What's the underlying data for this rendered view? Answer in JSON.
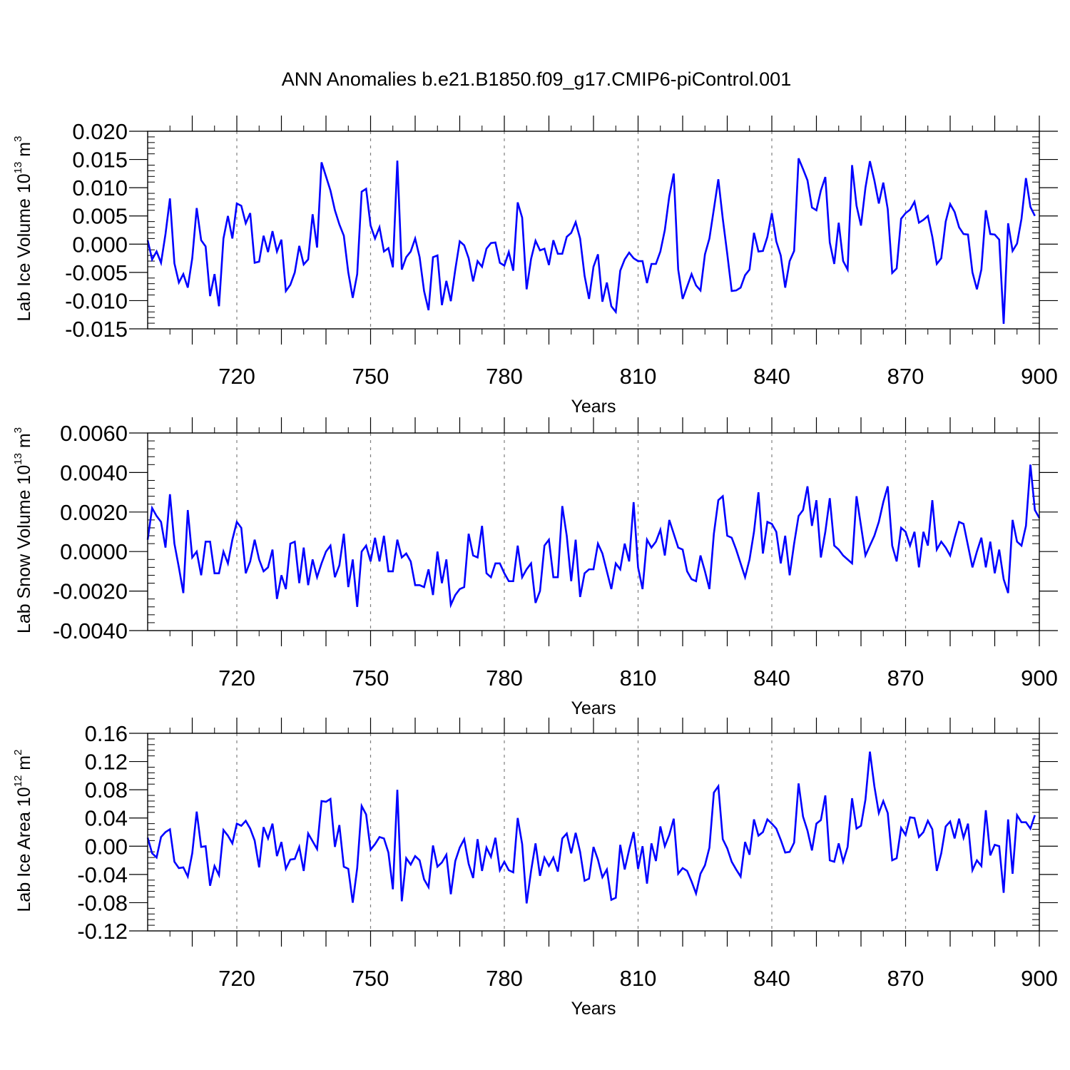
{
  "title": "ANN Anomalies b.e21.B1850.f09_g17.CMIP6-piControl.001",
  "chart_data": [
    {
      "type": "line",
      "ylabel": "Lab Ice Volume 10",
      "ylabel_exp": "13",
      "ylabel_unit": " m",
      "ylabel_unit_exp": "3",
      "xlabel": "Years",
      "xlim": [
        700,
        900
      ],
      "ylim": [
        -0.015,
        0.02
      ],
      "yticks": [
        -0.015,
        -0.01,
        -0.005,
        0.0,
        0.005,
        0.01,
        0.015,
        0.02
      ],
      "ytick_labels": [
        "-0.015",
        "-0.010",
        "-0.005",
        "0.000",
        "0.005",
        "0.010",
        "0.015",
        "0.020"
      ],
      "xticks": [
        720,
        750,
        780,
        810,
        840,
        870,
        900
      ],
      "xtick_labels": [
        "720",
        "750",
        "780",
        "810",
        "840",
        "870",
        "900"
      ],
      "grid": "dashed vertical at x ticks",
      "series": [
        {
          "color": "#0000ff",
          "x_start": 700,
          "values": [
            0.0007,
            -0.0027,
            -0.0013,
            -0.0033,
            0.0018,
            0.0081,
            -0.0034,
            -0.0068,
            -0.0053,
            -0.0077,
            -0.0025,
            0.0064,
            0.0007,
            -0.0004,
            -0.0092,
            -0.0053,
            -0.011,
            0.001,
            0.005,
            0.001,
            0.0072,
            0.0068,
            0.0037,
            0.0055,
            -0.0033,
            -0.0031,
            0.0015,
            -0.0014,
            0.0023,
            -0.0013,
            0.0008,
            -0.0083,
            -0.0072,
            -0.005,
            -0.0003,
            -0.0036,
            -0.0027,
            0.0053,
            -0.0006,
            0.0145,
            0.012,
            0.0095,
            0.006,
            0.0035,
            0.0015,
            -0.005,
            -0.0095,
            -0.0053,
            0.0093,
            0.0098,
            0.0033,
            0.001,
            0.003,
            -0.0013,
            -0.0007,
            -0.0041,
            0.0148,
            -0.0045,
            -0.0023,
            -0.0013,
            0.001,
            -0.0023,
            -0.0083,
            -0.0117,
            -0.0023,
            -0.002,
            -0.0108,
            -0.0065,
            -0.0101,
            -0.0045,
            0.0005,
            -0.0002,
            -0.0025,
            -0.0066,
            -0.003,
            -0.004,
            -0.0008,
            0.0002,
            0.0003,
            -0.0033,
            -0.0038,
            -0.0014,
            -0.0047,
            0.0074,
            0.0047,
            -0.008,
            -0.0026,
            0.0006,
            -0.0011,
            -0.0008,
            -0.0037,
            0.0007,
            -0.0017,
            -0.0017,
            0.0013,
            0.002,
            0.0039,
            0.001,
            -0.0056,
            -0.0097,
            -0.004,
            -0.0018,
            -0.0102,
            -0.0068,
            -0.011,
            -0.012,
            -0.0047,
            -0.0027,
            -0.0015,
            -0.0025,
            -0.003,
            -0.003,
            -0.0069,
            -0.0035,
            -0.0035,
            -0.0013,
            0.0025,
            0.0085,
            0.0125,
            -0.0045,
            -0.0097,
            -0.0075,
            -0.0053,
            -0.0073,
            -0.0082,
            -0.0018,
            0.001,
            0.0062,
            0.0115,
            0.0045,
            -0.0017,
            -0.0083,
            -0.0082,
            -0.0077,
            -0.0055,
            -0.0045,
            0.002,
            -0.0013,
            -0.0012,
            0.0013,
            0.0055,
            0.0005,
            -0.002,
            -0.0077,
            -0.003,
            -0.0012,
            0.0152,
            0.0133,
            0.0113,
            0.0065,
            0.006,
            0.0095,
            0.0119,
            0.0003,
            -0.0035,
            0.0038,
            -0.003,
            -0.0045,
            0.014,
            0.0068,
            0.0033,
            0.01,
            0.0147,
            0.0113,
            0.0072,
            0.0109,
            0.0062,
            -0.0051,
            -0.0043,
            0.0045,
            0.0055,
            0.0061,
            0.0075,
            0.0038,
            0.0043,
            0.005,
            0.0013,
            -0.0035,
            -0.0025,
            0.004,
            0.0071,
            0.0057,
            0.003,
            0.0018,
            0.0017,
            -0.005,
            -0.008,
            -0.0045,
            0.006,
            0.0018,
            0.0017,
            0.0008,
            -0.0141,
            0.0037,
            -0.0012,
            0.0001,
            0.0045,
            0.0117,
            0.0066,
            0.005
          ]
        }
      ]
    },
    {
      "type": "line",
      "ylabel": "Lab Snow Volume 10",
      "ylabel_exp": "13",
      "ylabel_unit": " m",
      "ylabel_unit_exp": "3",
      "xlabel": "Years",
      "xlim": [
        700,
        900
      ],
      "ylim": [
        -0.004,
        0.006
      ],
      "yticks": [
        -0.004,
        -0.002,
        0.0,
        0.002,
        0.004,
        0.006
      ],
      "ytick_labels": [
        "-0.0040",
        "-0.0020",
        "0.0000",
        "0.0020",
        "0.0040",
        "0.0060"
      ],
      "xticks": [
        720,
        750,
        780,
        810,
        840,
        870,
        900
      ],
      "xtick_labels": [
        "720",
        "750",
        "780",
        "810",
        "840",
        "870",
        "900"
      ],
      "grid": "dashed vertical at x ticks",
      "series": [
        {
          "color": "#0000ff",
          "x_start": 700,
          "values": [
            0.0006,
            0.0022,
            0.0018,
            0.0015,
            0.0002,
            0.0029,
            0.0004,
            -0.0008,
            -0.0021,
            0.0021,
            -0.0003,
            0.0,
            -0.0012,
            0.0005,
            0.0005,
            -0.0011,
            -0.0011,
            0.0,
            -0.0006,
            0.0006,
            0.0015,
            0.0012,
            -0.0011,
            -0.0005,
            0.0006,
            -0.0004,
            -0.001,
            -0.0008,
            0.0001,
            -0.0024,
            -0.0012,
            -0.0019,
            0.0004,
            0.0005,
            -0.0016,
            0.0002,
            -0.0017,
            -0.0004,
            -0.0013,
            -0.0006,
            0.0,
            0.0003,
            -0.0013,
            -0.0007,
            0.0009,
            -0.0018,
            -0.0004,
            -0.0028,
            0.0,
            0.0003,
            -0.0005,
            0.0007,
            -0.0005,
            0.0008,
            -0.001,
            -0.001,
            0.0006,
            -0.0003,
            -0.0001,
            -0.0005,
            -0.0017,
            -0.0017,
            -0.0018,
            -0.0009,
            -0.0022,
            0.0,
            -0.0016,
            -0.0004,
            -0.0027,
            -0.0022,
            -0.0019,
            -0.0018,
            0.0009,
            -0.0002,
            -0.0003,
            0.0013,
            -0.0011,
            -0.0013,
            -0.0006,
            -0.0006,
            -0.0011,
            -0.0015,
            -0.0015,
            0.0003,
            -0.0013,
            -0.0009,
            -0.0006,
            -0.0026,
            -0.002,
            0.0003,
            0.0006,
            -0.0013,
            -0.0013,
            0.0023,
            0.0008,
            -0.0015,
            0.0006,
            -0.0023,
            -0.0011,
            -0.0009,
            -0.0009,
            0.0004,
            -0.0001,
            -0.001,
            -0.0019,
            -0.0006,
            -0.0009,
            0.0004,
            -0.0005,
            0.0025,
            -0.0008,
            -0.0019,
            0.0006,
            0.0002,
            0.0005,
            0.0011,
            -0.0002,
            0.0016,
            0.0009,
            0.0002,
            0.0001,
            -0.001,
            -0.0014,
            -0.0015,
            -0.0002,
            -0.001,
            -0.0019,
            0.0009,
            0.0026,
            0.0028,
            0.0008,
            0.0007,
            0.0001,
            -0.0006,
            -0.0013,
            -0.0004,
            0.001,
            0.003,
            -0.0001,
            0.0015,
            0.0014,
            0.001,
            -0.0006,
            0.0008,
            -0.0012,
            0.0004,
            0.0018,
            0.0021,
            0.0033,
            0.0013,
            0.0026,
            -0.0003,
            0.001,
            0.0027,
            0.0003,
            0.0001,
            -0.0002,
            -0.0004,
            -0.0006,
            0.0028,
            0.0013,
            -0.0002,
            0.0003,
            0.0008,
            0.0015,
            0.0025,
            0.0033,
            0.0003,
            -0.0005,
            0.0012,
            0.001,
            0.0003,
            0.001,
            -0.0008,
            0.001,
            0.0003,
            0.0026,
            0.0001,
            0.0005,
            0.0002,
            -0.0002,
            0.0007,
            0.0015,
            0.0014,
            0.0003,
            -0.0008,
            0.0,
            0.0007,
            -0.0008,
            0.0005,
            -0.0011,
            0.0001,
            -0.0014,
            -0.0021,
            0.0016,
            0.0005,
            0.0003,
            0.0013,
            0.0044,
            0.0021,
            0.0017
          ]
        }
      ]
    },
    {
      "type": "line",
      "ylabel": "Lab Ice Area 10",
      "ylabel_exp": "12",
      "ylabel_unit": " m",
      "ylabel_unit_exp": "2",
      "xlabel": "Years",
      "xlim": [
        700,
        900
      ],
      "ylim": [
        -0.12,
        0.16
      ],
      "yticks": [
        -0.12,
        -0.08,
        -0.04,
        0.0,
        0.04,
        0.08,
        0.12,
        0.16
      ],
      "ytick_labels": [
        "-0.12",
        "-0.08",
        "-0.04",
        "0.00",
        "0.04",
        "0.08",
        "0.12",
        "0.16"
      ],
      "xticks": [
        720,
        750,
        780,
        810,
        840,
        870,
        900
      ],
      "xtick_labels": [
        "720",
        "750",
        "780",
        "810",
        "840",
        "870",
        "900"
      ],
      "grid": "dashed vertical at x ticks",
      "series": [
        {
          "color": "#0000ff",
          "x_start": 700,
          "values": [
            0.012,
            -0.01,
            -0.016,
            0.013,
            0.02,
            0.024,
            -0.022,
            -0.031,
            -0.03,
            -0.043,
            -0.01,
            0.049,
            -0.001,
            0.0,
            -0.056,
            -0.028,
            -0.041,
            0.023,
            0.015,
            0.004,
            0.032,
            0.029,
            0.036,
            0.025,
            0.008,
            -0.03,
            0.027,
            0.011,
            0.032,
            -0.014,
            0.006,
            -0.032,
            -0.019,
            -0.018,
            -0.001,
            -0.035,
            0.018,
            0.007,
            -0.004,
            0.064,
            0.063,
            0.067,
            -0.001,
            0.03,
            -0.029,
            -0.032,
            -0.08,
            -0.031,
            0.057,
            0.045,
            -0.005,
            0.003,
            0.013,
            0.011,
            -0.009,
            -0.061,
            0.08,
            -0.078,
            -0.017,
            -0.026,
            -0.014,
            -0.02,
            -0.047,
            -0.058,
            0.001,
            -0.029,
            -0.023,
            -0.012,
            -0.068,
            -0.021,
            -0.002,
            0.01,
            -0.025,
            -0.045,
            0.01,
            -0.035,
            -0.002,
            -0.015,
            0.012,
            -0.034,
            -0.022,
            -0.034,
            -0.037,
            0.04,
            0.003,
            -0.081,
            -0.035,
            0.004,
            -0.042,
            -0.016,
            -0.028,
            -0.016,
            -0.036,
            0.011,
            0.018,
            -0.01,
            0.019,
            -0.008,
            -0.049,
            -0.046,
            -0.001,
            -0.019,
            -0.044,
            -0.033,
            -0.076,
            -0.073,
            0.002,
            -0.033,
            -0.005,
            0.02,
            -0.032,
            0.0,
            -0.053,
            0.004,
            -0.021,
            0.028,
            0.0,
            0.016,
            0.039,
            -0.039,
            -0.031,
            -0.035,
            -0.05,
            -0.067,
            -0.039,
            -0.027,
            -0.002,
            0.076,
            0.085,
            0.01,
            -0.003,
            -0.022,
            -0.033,
            -0.043,
            0.006,
            -0.012,
            0.038,
            0.015,
            0.02,
            0.038,
            0.032,
            0.025,
            0.009,
            -0.009,
            -0.008,
            0.005,
            0.089,
            0.042,
            0.022,
            -0.006,
            0.032,
            0.037,
            0.072,
            -0.02,
            -0.022,
            0.004,
            -0.022,
            -0.001,
            0.068,
            0.025,
            0.029,
            0.066,
            0.134,
            0.085,
            0.047,
            0.064,
            0.047,
            -0.02,
            -0.017,
            0.026,
            0.016,
            0.041,
            0.04,
            0.013,
            0.02,
            0.036,
            0.024,
            -0.035,
            -0.01,
            0.028,
            0.035,
            0.011,
            0.039,
            0.012,
            0.032,
            -0.034,
            -0.02,
            -0.028,
            0.051,
            -0.013,
            0.002,
            0.0,
            -0.066,
            0.038,
            -0.039,
            0.044,
            0.034,
            0.034,
            0.025,
            0.044
          ]
        }
      ]
    }
  ]
}
